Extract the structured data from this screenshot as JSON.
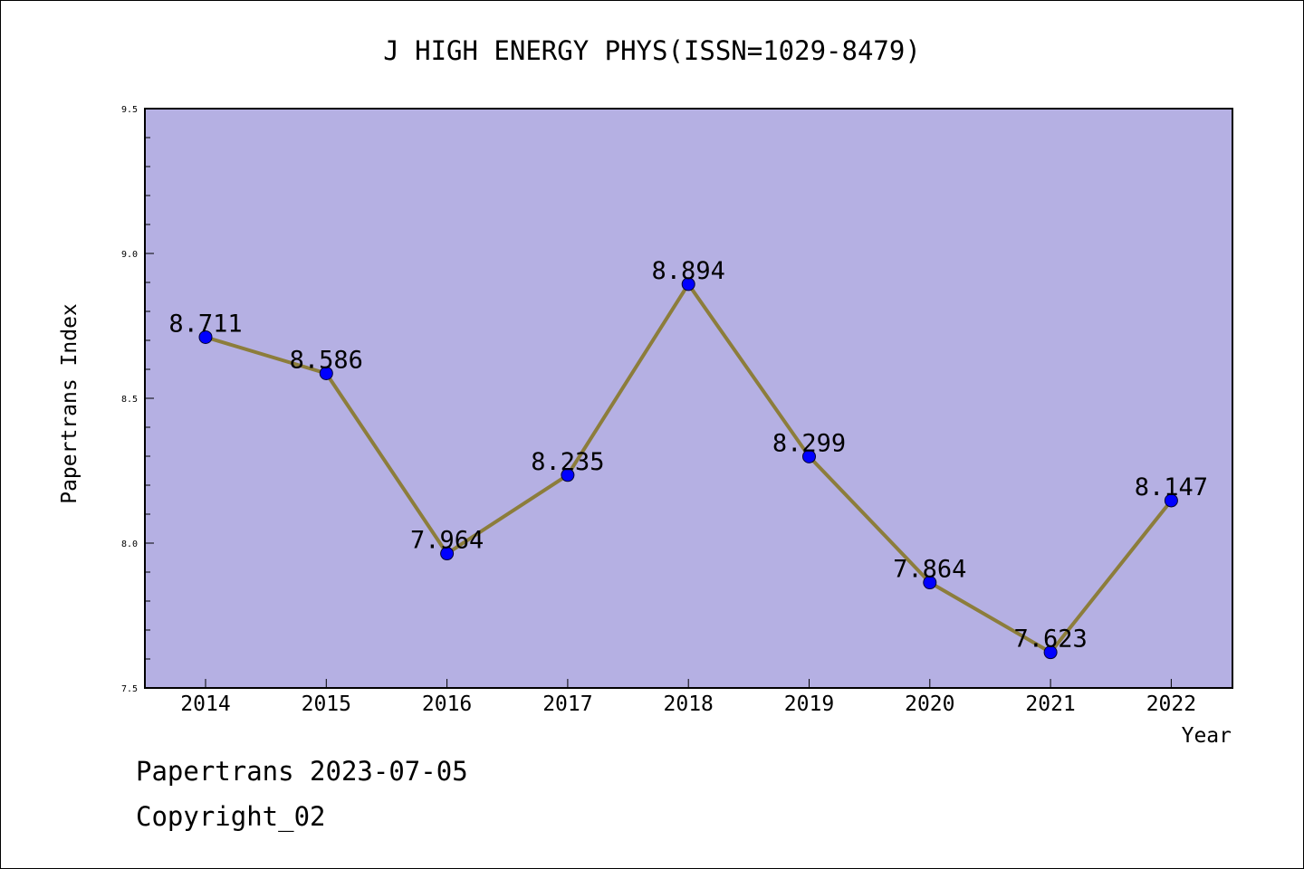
{
  "chart_data": {
    "type": "line",
    "title": "J HIGH ENERGY PHYS(ISSN=1029-8479)",
    "xlabel": "Year",
    "ylabel": "Papertrans Index",
    "categories": [
      "2014",
      "2015",
      "2016",
      "2017",
      "2018",
      "2019",
      "2020",
      "2021",
      "2022"
    ],
    "values": [
      8.711,
      8.586,
      7.964,
      8.235,
      8.894,
      8.299,
      7.864,
      7.623,
      8.147
    ],
    "data_labels": [
      "8.711",
      "8.586",
      "7.964",
      "8.235",
      "8.894",
      "8.299",
      "7.864",
      "7.623",
      "8.147"
    ],
    "ylim": [
      7.5,
      9.5
    ],
    "yticks": [
      "7.5",
      "8.0",
      "8.5",
      "9.0",
      "9.5"
    ],
    "yminor_step": 0.1,
    "grid": false,
    "legend": "none",
    "colors": {
      "plot_background": "#b5b0e3",
      "line": "#8c7d3b",
      "marker": "#0000ff",
      "axis": "#000000"
    }
  },
  "footer": {
    "date_line": "Papertrans 2023-07-05",
    "copyright_line": "Copyright_02"
  }
}
